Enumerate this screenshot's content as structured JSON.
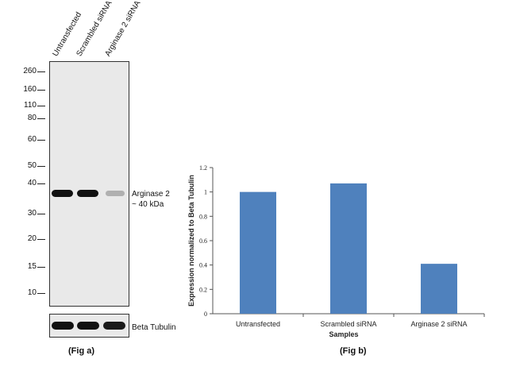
{
  "fig_a": {
    "lane_labels": [
      "Untransfected",
      "Scrambled siRNA",
      "Arginase 2 siRNA"
    ],
    "mw_markers": [
      "260",
      "160",
      "110",
      "80",
      "60",
      "50",
      "40",
      "30",
      "20",
      "15",
      "10"
    ],
    "band_note_line1": "Arginase 2",
    "band_note_line2": "~ 40 kDa",
    "loading_control_label": "Beta Tubulin",
    "caption": "(Fig a)"
  },
  "fig_b": {
    "caption": "(Fig b)"
  },
  "chart_data": {
    "type": "bar",
    "categories": [
      "Untransfected",
      "Scrambled siRNA",
      "Arginase 2 siRNA"
    ],
    "values": [
      1.0,
      1.07,
      0.41
    ],
    "xlabel": "Samples",
    "ylabel": "Expression normalized to Beta Tubulin",
    "ylim": [
      0,
      1.2
    ],
    "yticks": [
      "0",
      "0.2",
      "0.4",
      "0.6",
      "0.8",
      "1",
      "1.2"
    ],
    "grid": false,
    "bar_color": "#4F81BD"
  }
}
